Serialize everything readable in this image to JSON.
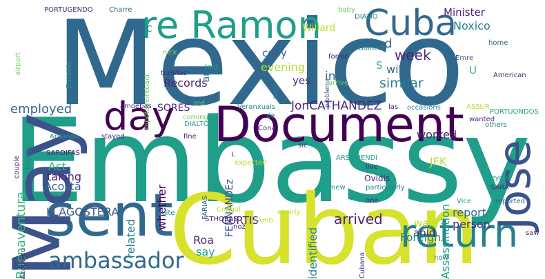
{
  "palette": {
    "dark_purple": "#440154",
    "indigo": "#482878",
    "blue": "#3b528b",
    "steel": "#31688e",
    "teal": "#26828e",
    "sea": "#1f9e89",
    "green": "#35b779",
    "lime": "#6ece58",
    "yellowgreen": "#b5de2b",
    "yellow": "#d6e22b"
  },
  "words": [
    {
      "text": "Mexico",
      "color": "steel"
    },
    {
      "text": "Embassy",
      "color": "sea"
    },
    {
      "text": "Document",
      "color": "dark_purple"
    },
    {
      "text": "Cuban",
      "color": "yellow"
    },
    {
      "text": "sent",
      "color": "steel"
    },
    {
      "text": "May",
      "color": "blue"
    },
    {
      "text": "Jose",
      "color": "blue"
    },
    {
      "text": "re Ramon",
      "color": "sea"
    },
    {
      "text": "Cuba",
      "color": "steel"
    },
    {
      "text": "day",
      "color": "dark_purple"
    },
    {
      "text": "return",
      "color": "teal"
    },
    {
      "text": "ambassador",
      "color": "steel"
    },
    {
      "text": "employed",
      "color": "steel"
    },
    {
      "text": "JonCATHANDEZ",
      "color": "indigo"
    },
    {
      "text": "Minister",
      "color": "indigo"
    },
    {
      "text": "Noxico",
      "color": "teal"
    },
    {
      "text": "Willard",
      "color": "yellowgreen"
    },
    {
      "text": "week",
      "color": "indigo"
    },
    {
      "text": "asked",
      "color": "steel"
    },
    {
      "text": "copy",
      "color": "steel"
    },
    {
      "text": "evening",
      "color": "yellowgreen"
    },
    {
      "text": "info",
      "color": "steel"
    },
    {
      "text": "will",
      "color": "steel"
    },
    {
      "text": "similar",
      "color": "teal"
    },
    {
      "text": "yes",
      "color": "indigo"
    },
    {
      "text": "Records",
      "color": "indigo"
    },
    {
      "text": "SORES",
      "color": "indigo"
    },
    {
      "text": "ani",
      "color": "steel"
    },
    {
      "text": "U",
      "color": "green"
    },
    {
      "text": "S",
      "color": "green"
    },
    {
      "text": "C",
      "color": "steel"
    },
    {
      "text": "Act",
      "color": "green"
    },
    {
      "text": "taking",
      "color": "indigo"
    },
    {
      "text": "Acosta",
      "color": "steel"
    },
    {
      "text": "LLAGOSTERA",
      "color": "blue"
    },
    {
      "text": "Buenaventura",
      "color": "green"
    },
    {
      "text": "related",
      "color": "teal"
    },
    {
      "text": "whether",
      "color": "dark_purple"
    },
    {
      "text": "FERNANDEz",
      "color": "blue"
    },
    {
      "text": "identified",
      "color": "teal"
    },
    {
      "text": "JFK",
      "color": "yellowgreen"
    },
    {
      "text": "worked",
      "color": "indigo"
    },
    {
      "text": "Assassination",
      "color": "sea"
    },
    {
      "text": "arrived",
      "color": "indigo"
    },
    {
      "text": "report",
      "color": "steel"
    },
    {
      "text": "person",
      "color": "indigo"
    },
    {
      "text": "waid",
      "color": "yellowgreen"
    },
    {
      "text": "anid",
      "color": "indigo"
    },
    {
      "text": "Foreign",
      "color": "teal"
    },
    {
      "text": "CURTIS",
      "color": "indigo"
    },
    {
      "text": "Roa",
      "color": "indigo"
    },
    {
      "text": "say",
      "color": "sea"
    },
    {
      "text": "PORTUGENDO",
      "color": "indigo"
    },
    {
      "text": "Charre",
      "color": "steel"
    },
    {
      "text": "airport",
      "color": "lime"
    },
    {
      "text": "Eusebio",
      "color": "sea"
    },
    {
      "text": "baby",
      "color": "lime"
    },
    {
      "text": "DIATIO",
      "color": "teal"
    },
    {
      "text": "Guinean",
      "color": "teal"
    },
    {
      "text": "forror",
      "color": "indigo"
    },
    {
      "text": "problems",
      "color": "blue"
    },
    {
      "text": "arrive",
      "color": "lime"
    },
    {
      "text": "Emre",
      "color": "blue"
    },
    {
      "text": "home",
      "color": "steel"
    },
    {
      "text": "American",
      "color": "indigo"
    },
    {
      "text": "nick",
      "color": "lime"
    },
    {
      "text": "told",
      "color": "sea"
    },
    {
      "text": "turistas",
      "color": "indigo"
    },
    {
      "text": "mpotaireirebaid",
      "color": "lime"
    },
    {
      "text": "near",
      "color": "teal"
    },
    {
      "text": "amoebas",
      "color": "indigo"
    },
    {
      "text": "old",
      "color": "lime"
    },
    {
      "text": "Veranxuais",
      "color": "teal"
    },
    {
      "text": "las",
      "color": "indigo"
    },
    {
      "text": "occasions",
      "color": "teal"
    },
    {
      "text": "ASSUR",
      "color": "yellowgreen"
    },
    {
      "text": "next",
      "color": "steel"
    },
    {
      "text": "PORTUONDOS",
      "color": "sea"
    },
    {
      "text": "wanted",
      "color": "indigo"
    },
    {
      "text": "others",
      "color": "teal"
    },
    {
      "text": "Chiquior",
      "color": "teal"
    },
    {
      "text": "couple",
      "color": "indigo"
    },
    {
      "text": "Aruando",
      "color": "sea"
    },
    {
      "text": "stayed",
      "color": "indigo"
    },
    {
      "text": "coming",
      "color": "lime"
    },
    {
      "text": "DIALTO",
      "color": "sea"
    },
    {
      "text": "de",
      "color": "teal"
    },
    {
      "text": "Cona",
      "color": "indigo"
    },
    {
      "text": "fine",
      "color": "indigo"
    },
    {
      "text": "sic",
      "color": "indigo"
    },
    {
      "text": "SARDIFAS",
      "color": "indigo"
    },
    {
      "text": "L",
      "color": "indigo"
    },
    {
      "text": "ARSAMENDI",
      "color": "sea"
    },
    {
      "text": "expected",
      "color": "yellowgreen"
    },
    {
      "text": "live",
      "color": "indigo"
    },
    {
      "text": "Seydor",
      "color": "sea"
    },
    {
      "text": "SARA",
      "color": "indigo"
    },
    {
      "text": "Ovidis",
      "color": "indigo"
    },
    {
      "text": "particularly",
      "color": "teal"
    },
    {
      "text": "new",
      "color": "sea"
    },
    {
      "text": "FARIAS",
      "color": "steel"
    },
    {
      "text": "one",
      "color": "indigo"
    },
    {
      "text": "Vice",
      "color": "sea"
    },
    {
      "text": "reported",
      "color": "steel"
    },
    {
      "text": "Congul",
      "color": "yellowgreen"
    },
    {
      "text": "quite",
      "color": "teal"
    },
    {
      "text": "STHORAS",
      "color": "indigo"
    },
    {
      "text": "Amb",
      "color": "yellowgreen"
    },
    {
      "text": "wharly",
      "color": "yellowgreen"
    },
    {
      "text": "Acapulco",
      "color": "indigo"
    },
    {
      "text": "nož",
      "color": "indigo"
    },
    {
      "text": "Cubana",
      "color": "indigo"
    },
    {
      "text": "saw",
      "color": "indigo"
    },
    {
      "text": "now",
      "color": "teal"
    }
  ]
}
